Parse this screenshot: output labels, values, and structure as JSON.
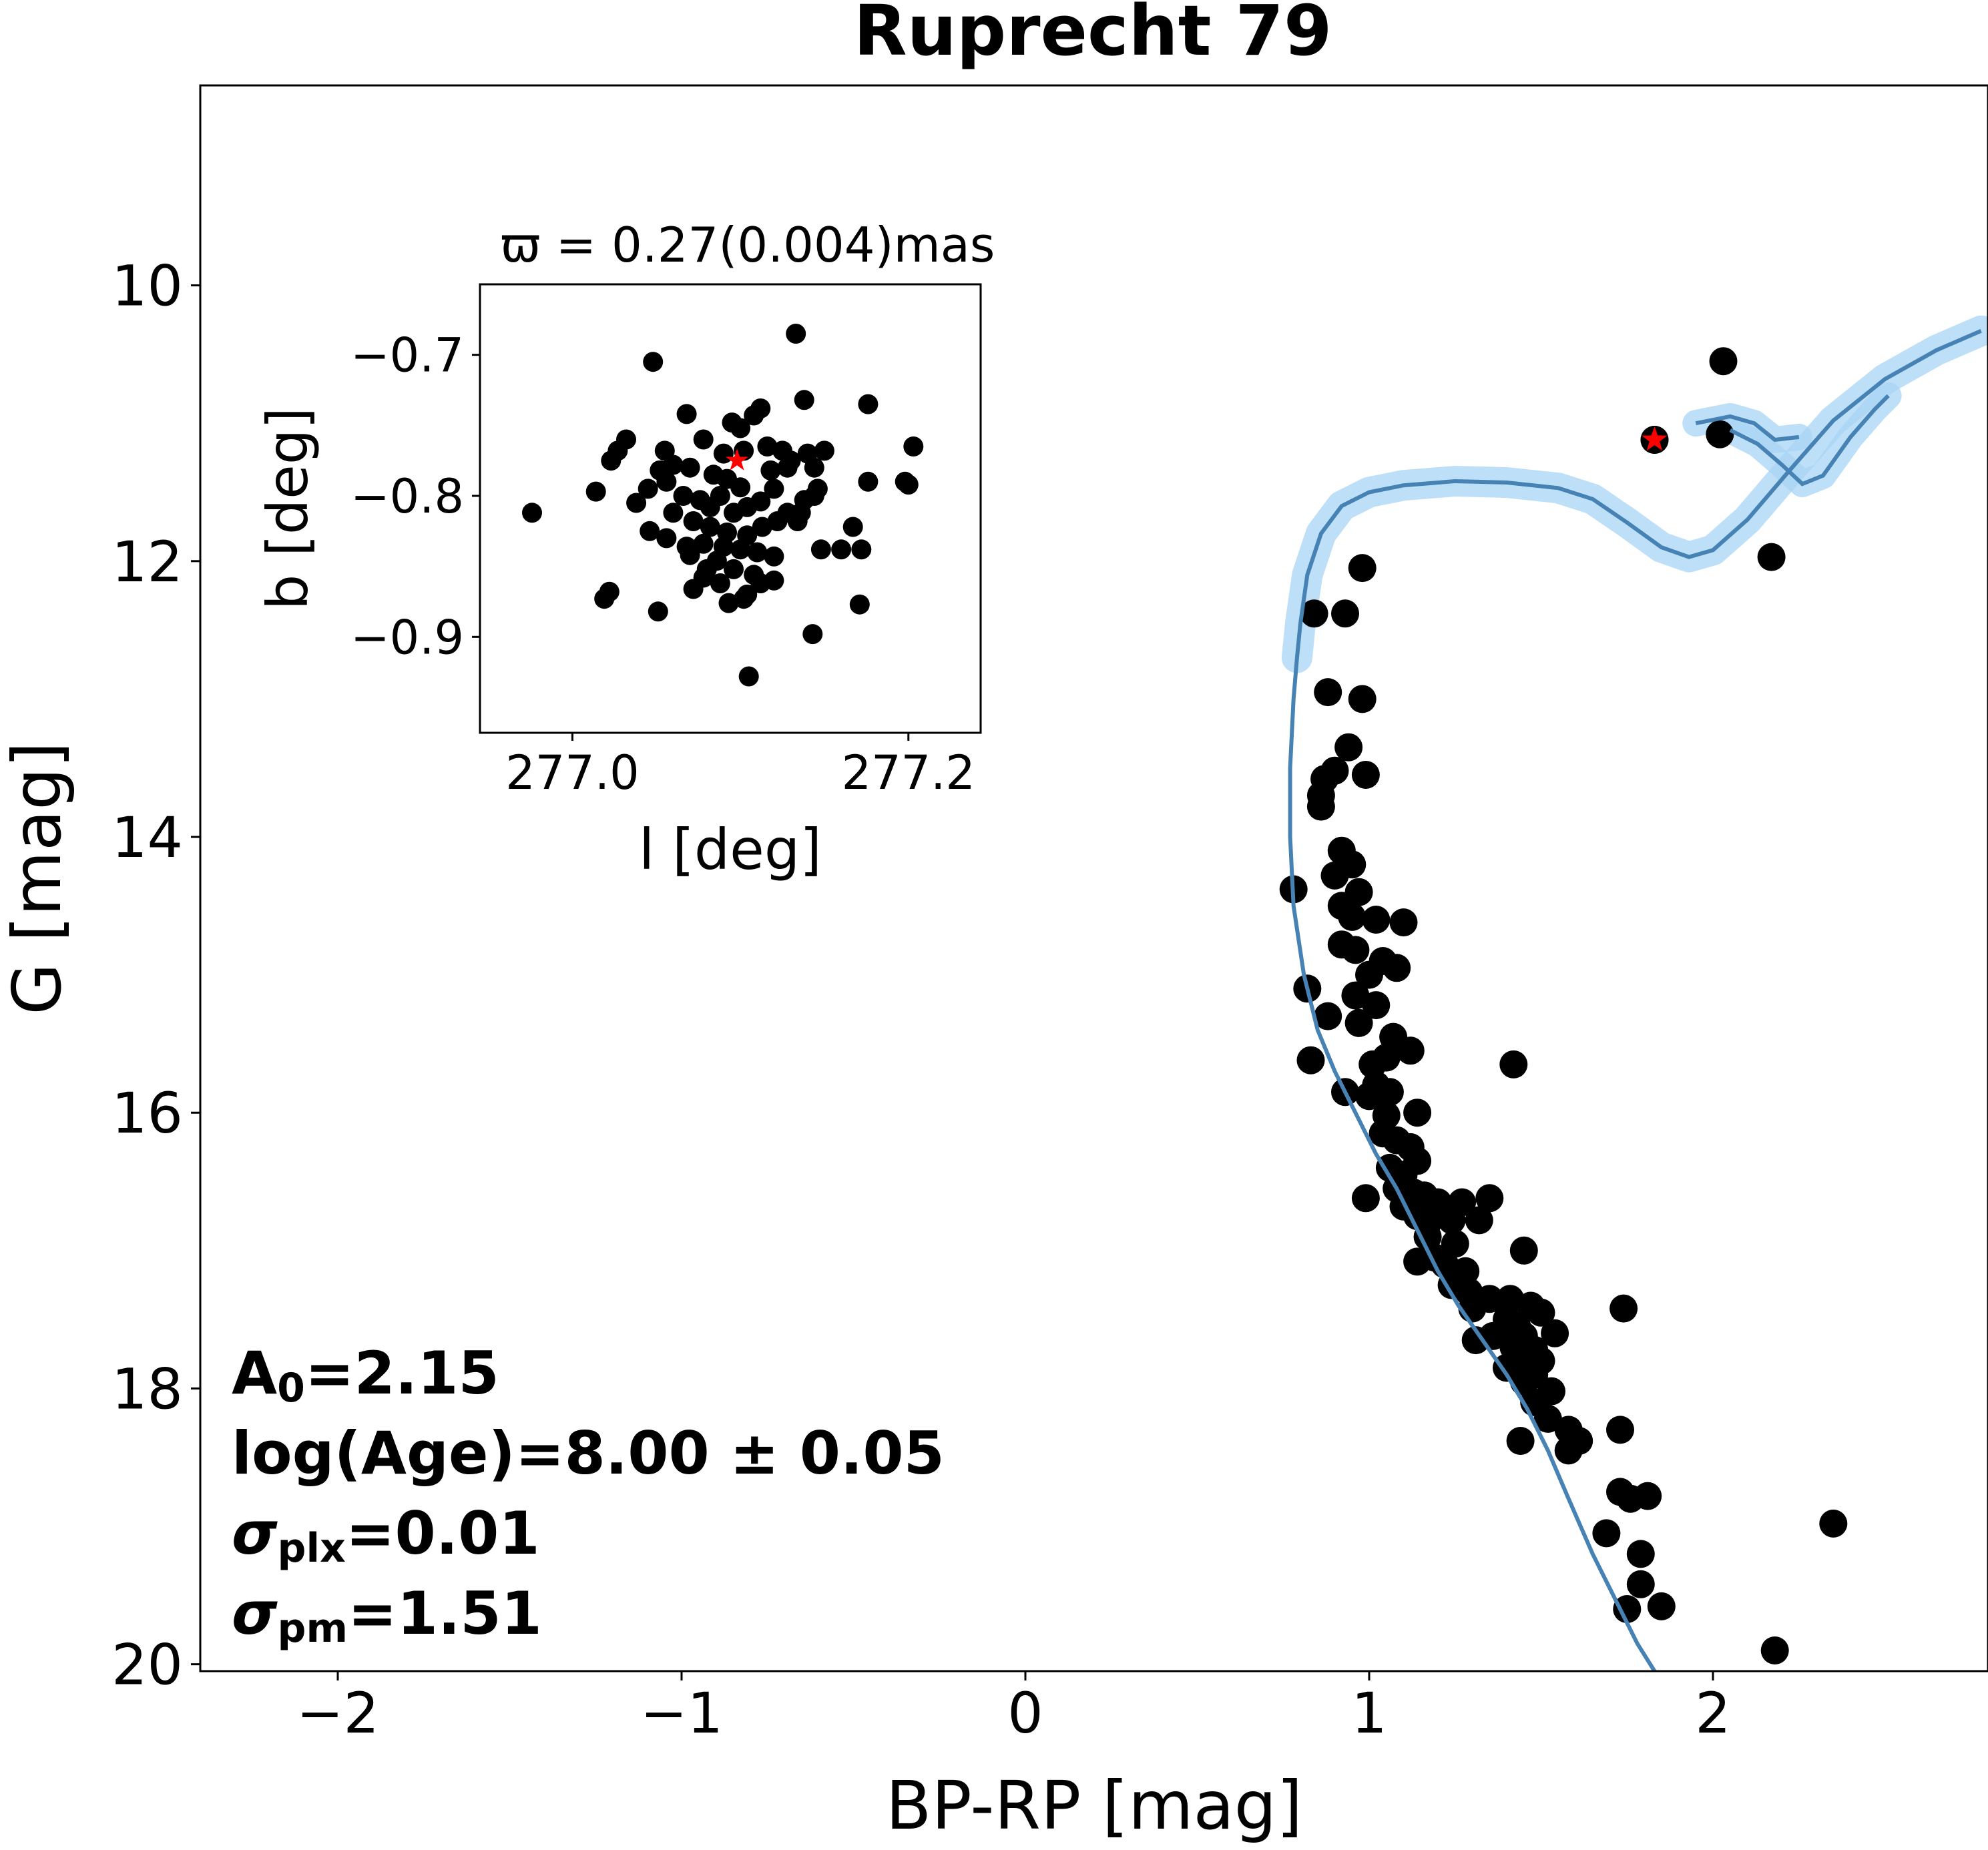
{
  "chart_data": [
    {
      "type": "scatter",
      "title": "Ruprecht 79",
      "xlabel": "BP-RP [mag]",
      "ylabel": "G [mag]",
      "xlim": [
        -2.4,
        2.8
      ],
      "ylim": [
        20.05,
        8.55
      ],
      "y_inverted": true,
      "xticks": [
        -2,
        -1,
        0,
        1,
        2
      ],
      "xtick_labels": [
        "−2",
        "−1",
        "0",
        "1",
        "2"
      ],
      "yticks": [
        10,
        12,
        14,
        16,
        18,
        20
      ],
      "ytick_labels": [
        "10",
        "12",
        "14",
        "16",
        "18",
        "20"
      ],
      "grid": false,
      "annotations": {
        "a0_base": "A",
        "a0_sub": "0",
        "a0_value": "=2.15",
        "age": "log(Age)=8.00 ± 0.05",
        "splx_sym": "σ",
        "splx_sub": "plx",
        "splx_value": "=0.01",
        "spm_sym": "σ",
        "spm_sub": "pm",
        "spm_value": "=1.51"
      },
      "colors": {
        "points": "#000000",
        "isochrone": "#4682b4",
        "band": "#a8d4f5",
        "highlight": "#ff0000"
      },
      "highlight_star": {
        "x": 1.83,
        "y": 11.12
      },
      "isochrone": [
        [
          0.79,
          12.7
        ],
        [
          0.8,
          12.45
        ],
        [
          0.82,
          12.1
        ],
        [
          0.86,
          11.8
        ],
        [
          0.92,
          11.6
        ],
        [
          1.0,
          11.5
        ],
        [
          1.1,
          11.45
        ],
        [
          1.25,
          11.42
        ],
        [
          1.4,
          11.43
        ],
        [
          1.55,
          11.47
        ],
        [
          1.65,
          11.55
        ],
        [
          1.75,
          11.72
        ],
        [
          1.85,
          11.9
        ],
        [
          1.93,
          11.97
        ],
        [
          2.0,
          11.92
        ],
        [
          2.1,
          11.7
        ],
        [
          2.22,
          11.35
        ],
        [
          2.35,
          10.98
        ],
        [
          2.5,
          10.68
        ],
        [
          2.65,
          10.47
        ],
        [
          2.78,
          10.33
        ]
      ],
      "isochrone_branch2": [
        [
          2.05,
          11.05
        ],
        [
          2.13,
          11.15
        ],
        [
          2.2,
          11.3
        ],
        [
          2.26,
          11.44
        ],
        [
          2.32,
          11.38
        ],
        [
          2.4,
          11.1
        ],
        [
          2.47,
          10.9
        ],
        [
          2.51,
          10.8
        ]
      ],
      "isochrone_branch3": [
        [
          1.95,
          11.0
        ],
        [
          2.05,
          10.95
        ],
        [
          2.12,
          11.0
        ],
        [
          2.18,
          11.12
        ],
        [
          2.25,
          11.1
        ]
      ],
      "ms_curve": [
        [
          0.79,
          12.7
        ],
        [
          0.78,
          13.0
        ],
        [
          0.77,
          13.5
        ],
        [
          0.77,
          14.0
        ],
        [
          0.78,
          14.5
        ],
        [
          0.81,
          15.0
        ],
        [
          0.85,
          15.4
        ],
        [
          0.9,
          15.7
        ],
        [
          0.96,
          16.0
        ],
        [
          1.02,
          16.3
        ],
        [
          1.08,
          16.55
        ],
        [
          1.14,
          16.85
        ],
        [
          1.2,
          17.15
        ],
        [
          1.26,
          17.4
        ],
        [
          1.33,
          17.65
        ],
        [
          1.4,
          17.9
        ],
        [
          1.46,
          18.15
        ],
        [
          1.52,
          18.45
        ],
        [
          1.58,
          18.8
        ],
        [
          1.65,
          19.2
        ],
        [
          1.72,
          19.55
        ],
        [
          1.78,
          19.85
        ],
        [
          1.83,
          20.05
        ]
      ],
      "points": [
        [
          2.03,
          10.55
        ],
        [
          2.02,
          11.08
        ],
        [
          1.83,
          11.12
        ],
        [
          2.17,
          11.97
        ],
        [
          0.98,
          12.05
        ],
        [
          0.84,
          12.38
        ],
        [
          0.93,
          12.38
        ],
        [
          0.88,
          12.95
        ],
        [
          0.98,
          13.0
        ],
        [
          0.94,
          13.35
        ],
        [
          0.99,
          13.55
        ],
        [
          0.87,
          13.58
        ],
        [
          0.9,
          13.52
        ],
        [
          0.86,
          13.7
        ],
        [
          0.86,
          13.78
        ],
        [
          0.78,
          14.38
        ],
        [
          0.92,
          14.1
        ],
        [
          0.95,
          14.2
        ],
        [
          0.9,
          14.28
        ],
        [
          0.97,
          14.4
        ],
        [
          0.92,
          14.5
        ],
        [
          0.95,
          14.58
        ],
        [
          1.02,
          14.6
        ],
        [
          1.1,
          14.62
        ],
        [
          0.92,
          14.78
        ],
        [
          0.96,
          14.82
        ],
        [
          1.04,
          14.9
        ],
        [
          1.0,
          15.0
        ],
        [
          1.08,
          14.95
        ],
        [
          0.96,
          15.15
        ],
        [
          0.82,
          15.1
        ],
        [
          1.02,
          15.22
        ],
        [
          0.88,
          15.3
        ],
        [
          0.97,
          15.35
        ],
        [
          1.07,
          15.45
        ],
        [
          1.05,
          15.6
        ],
        [
          1.12,
          15.55
        ],
        [
          1.01,
          15.65
        ],
        [
          0.83,
          15.62
        ],
        [
          1.02,
          15.8
        ],
        [
          1.06,
          15.85
        ],
        [
          0.93,
          15.85
        ],
        [
          1.0,
          15.88
        ],
        [
          1.05,
          16.02
        ],
        [
          1.14,
          16.0
        ],
        [
          1.42,
          15.65
        ],
        [
          1.04,
          16.15
        ],
        [
          1.08,
          16.2
        ],
        [
          1.12,
          16.25
        ],
        [
          1.06,
          16.4
        ],
        [
          1.1,
          16.45
        ],
        [
          1.14,
          16.35
        ],
        [
          1.08,
          16.55
        ],
        [
          1.13,
          16.58
        ],
        [
          0.99,
          16.62
        ],
        [
          1.1,
          16.68
        ],
        [
          1.16,
          16.6
        ],
        [
          1.2,
          16.65
        ],
        [
          1.27,
          16.65
        ],
        [
          1.35,
          16.62
        ],
        [
          1.14,
          16.75
        ],
        [
          1.17,
          16.8
        ],
        [
          1.24,
          16.78
        ],
        [
          1.32,
          16.78
        ],
        [
          1.17,
          16.9
        ],
        [
          1.25,
          16.95
        ],
        [
          1.19,
          17.05
        ],
        [
          1.14,
          17.08
        ],
        [
          1.22,
          17.1
        ],
        [
          1.28,
          17.15
        ],
        [
          1.45,
          17.0
        ],
        [
          1.24,
          17.25
        ],
        [
          1.29,
          17.3
        ],
        [
          1.35,
          17.35
        ],
        [
          1.41,
          17.35
        ],
        [
          1.47,
          17.4
        ],
        [
          1.5,
          17.45
        ],
        [
          1.3,
          17.42
        ],
        [
          1.4,
          17.5
        ],
        [
          1.43,
          17.55
        ],
        [
          1.36,
          17.62
        ],
        [
          1.45,
          17.62
        ],
        [
          1.54,
          17.6
        ],
        [
          1.31,
          17.65
        ],
        [
          1.42,
          17.7
        ],
        [
          1.48,
          17.72
        ],
        [
          1.45,
          17.78
        ],
        [
          1.5,
          17.8
        ],
        [
          1.4,
          17.85
        ],
        [
          1.48,
          17.9
        ],
        [
          1.45,
          17.95
        ],
        [
          1.53,
          18.02
        ],
        [
          1.48,
          18.1
        ],
        [
          1.52,
          18.22
        ],
        [
          1.58,
          18.3
        ],
        [
          1.61,
          18.38
        ],
        [
          1.44,
          18.38
        ],
        [
          1.58,
          18.45
        ],
        [
          1.74,
          17.42
        ],
        [
          1.73,
          18.3
        ],
        [
          1.73,
          18.75
        ],
        [
          1.76,
          18.8
        ],
        [
          1.81,
          18.78
        ],
        [
          1.69,
          19.05
        ],
        [
          1.79,
          19.2
        ],
        [
          1.79,
          19.42
        ],
        [
          1.75,
          19.6
        ],
        [
          1.85,
          19.58
        ],
        [
          2.18,
          19.9
        ],
        [
          2.35,
          18.98
        ]
      ]
    },
    {
      "type": "scatter",
      "title": "ϖ = 0.27(0.004)mas",
      "xlabel": "l [deg]",
      "ylabel": "b [deg]",
      "xlim": [
        276.945,
        277.243
      ],
      "ylim": [
        -0.968,
        -0.65
      ],
      "xticks": [
        277.0,
        277.2
      ],
      "xtick_labels": [
        "277.0",
        "277.2"
      ],
      "yticks": [
        -0.7,
        -0.8,
        -0.9
      ],
      "ytick_labels": [
        "−0.7",
        "−0.8",
        "−0.9"
      ],
      "grid": false,
      "highlight_star": {
        "x": 277.098,
        "y": -0.775
      },
      "points": [
        [
          277.133,
          -0.685
        ],
        [
          277.048,
          -0.705
        ],
        [
          277.176,
          -0.735
        ],
        [
          277.138,
          -0.732
        ],
        [
          277.112,
          -0.738
        ],
        [
          277.068,
          -0.742
        ],
        [
          277.095,
          -0.748
        ],
        [
          277.108,
          -0.743
        ],
        [
          277.1,
          -0.752
        ],
        [
          277.102,
          -0.768
        ],
        [
          277.09,
          -0.77
        ],
        [
          277.032,
          -0.76
        ],
        [
          277.055,
          -0.768
        ],
        [
          277.078,
          -0.76
        ],
        [
          277.116,
          -0.765
        ],
        [
          277.125,
          -0.768
        ],
        [
          277.14,
          -0.77
        ],
        [
          277.15,
          -0.768
        ],
        [
          277.13,
          -0.775
        ],
        [
          277.027,
          -0.768
        ],
        [
          277.023,
          -0.775
        ],
        [
          277.052,
          -0.782
        ],
        [
          277.06,
          -0.778
        ],
        [
          277.07,
          -0.78
        ],
        [
          277.084,
          -0.785
        ],
        [
          277.092,
          -0.788
        ],
        [
          277.118,
          -0.782
        ],
        [
          277.128,
          -0.78
        ],
        [
          277.144,
          -0.78
        ],
        [
          277.176,
          -0.79
        ],
        [
          277.198,
          -0.79
        ],
        [
          277.203,
          -0.765
        ],
        [
          277.146,
          -0.795
        ],
        [
          277.045,
          -0.795
        ],
        [
          277.056,
          -0.79
        ],
        [
          277.066,
          -0.8
        ],
        [
          277.076,
          -0.803
        ],
        [
          277.082,
          -0.808
        ],
        [
          277.088,
          -0.8
        ],
        [
          277.096,
          -0.812
        ],
        [
          277.104,
          -0.808
        ],
        [
          277.112,
          -0.804
        ],
        [
          277.12,
          -0.795
        ],
        [
          277.014,
          -0.797
        ],
        [
          277.128,
          -0.812
        ],
        [
          277.136,
          -0.812
        ],
        [
          277.144,
          -0.8
        ],
        [
          277.06,
          -0.812
        ],
        [
          277.072,
          -0.818
        ],
        [
          277.082,
          -0.822
        ],
        [
          277.092,
          -0.826
        ],
        [
          277.104,
          -0.828
        ],
        [
          277.113,
          -0.822
        ],
        [
          277.122,
          -0.818
        ],
        [
          277.134,
          -0.818
        ],
        [
          277.056,
          -0.83
        ],
        [
          277.046,
          -0.825
        ],
        [
          277.078,
          -0.834
        ],
        [
          277.09,
          -0.836
        ],
        [
          277.1,
          -0.838
        ],
        [
          277.11,
          -0.84
        ],
        [
          277.12,
          -0.843
        ],
        [
          277.167,
          -0.822
        ],
        [
          277.2,
          -0.792
        ],
        [
          277.07,
          -0.842
        ],
        [
          277.086,
          -0.846
        ],
        [
          277.096,
          -0.852
        ],
        [
          277.108,
          -0.856
        ],
        [
          276.976,
          -0.812
        ],
        [
          277.038,
          -0.805
        ],
        [
          277.068,
          -0.836
        ],
        [
          277.16,
          -0.838
        ],
        [
          277.172,
          -0.838
        ],
        [
          277.148,
          -0.838
        ],
        [
          277.08,
          -0.852
        ],
        [
          277.112,
          -0.862
        ],
        [
          277.12,
          -0.86
        ],
        [
          277.072,
          -0.866
        ],
        [
          277.104,
          -0.87
        ],
        [
          277.022,
          -0.868
        ],
        [
          277.019,
          -0.873
        ],
        [
          277.051,
          -0.882
        ],
        [
          277.171,
          -0.877
        ],
        [
          277.093,
          -0.876
        ],
        [
          277.102,
          -0.873
        ],
        [
          277.143,
          -0.898
        ],
        [
          277.105,
          -0.928
        ],
        [
          277.088,
          -0.862
        ],
        [
          277.078,
          -0.858
        ],
        [
          277.138,
          -0.803
        ],
        [
          277.1,
          -0.794
        ]
      ]
    }
  ]
}
